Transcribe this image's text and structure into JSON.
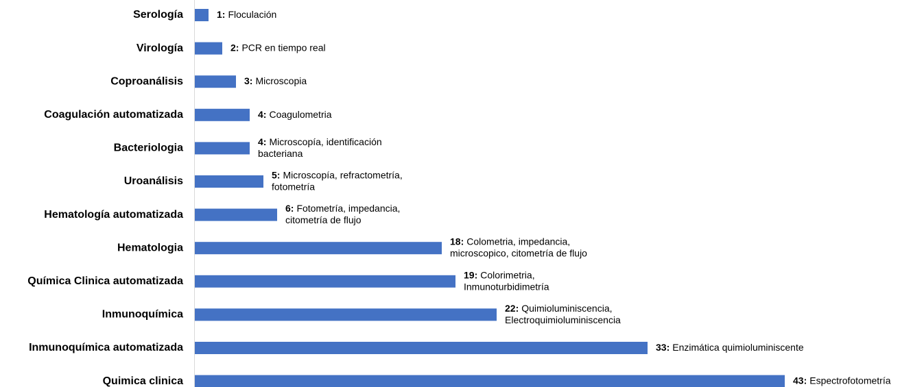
{
  "chart_data": {
    "type": "bar",
    "orientation": "horizontal",
    "categories": [
      "Serología",
      "Virología",
      "Coproanálisis",
      "Coagulación automatizada",
      "Bacteriologia",
      "Uroanálisis",
      "Hematología automatizada",
      "Hematologia",
      "Química Clinica automatizada",
      "Inmunoquímica",
      "Inmunoquímica automatizada",
      "Quimica clinica"
    ],
    "values": [
      1,
      2,
      3,
      4,
      4,
      5,
      6,
      18,
      19,
      22,
      33,
      43
    ],
    "value_labels": [
      "1:",
      "2:",
      "3:",
      "4:",
      "4:",
      "5:",
      "6:",
      "18:",
      "19:",
      "22:",
      "33:",
      "43:"
    ],
    "methods": [
      [
        "Floculación"
      ],
      [
        "PCR en tiempo real"
      ],
      [
        "Microscopia"
      ],
      [
        "Coagulometria"
      ],
      [
        "Microscopía, identificación",
        "bacteriana"
      ],
      [
        "Microscopía, refractometría,",
        "fotometría"
      ],
      [
        "Fotometría, impedancia,",
        "citometría de flujo"
      ],
      [
        "Colometria, impedancia,",
        "microscopico, citometría de flujo"
      ],
      [
        "Colorimetria,",
        "Inmunoturbidimetría"
      ],
      [
        "Quimioluminiscencia,",
        "Electroquimioluminiscencia"
      ],
      [
        "Enzimática quimioluminiscente"
      ],
      [
        "Espectrofotometría"
      ]
    ],
    "color": "#4472c4",
    "xlim": [
      0,
      50
    ]
  }
}
